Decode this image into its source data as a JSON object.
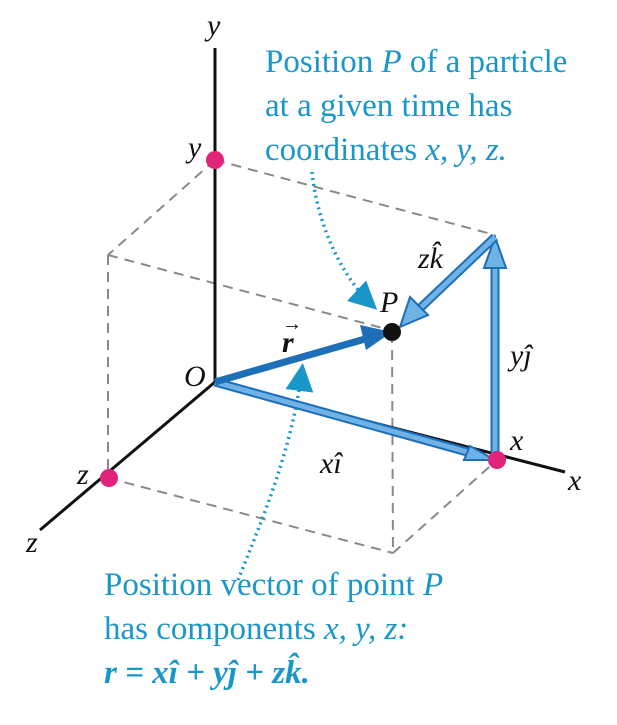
{
  "axes": {
    "x_label": "x",
    "y_label": "y",
    "z_label": "z",
    "origin_label": "O"
  },
  "coordinate_labels": {
    "x": "x",
    "y": "y",
    "z": "z"
  },
  "point_label": "P",
  "vectors": {
    "r": "r",
    "x_component": "xî",
    "y_component": "yĵ",
    "z_component": "zk̂"
  },
  "top_caption": {
    "line1_prefix": "Position ",
    "line1_var": "P",
    "line1_suffix": " of a particle",
    "line2": "at a given time has",
    "line3_prefix": "coordinates ",
    "line3_vars": "x, y, z."
  },
  "bottom_caption": {
    "line1_prefix": "Position vector of point ",
    "line1_var": "P",
    "line2_prefix": "has components ",
    "line2_vars": "x, y, z:",
    "equation": "r = xî + yĵ + zk̂."
  },
  "colors": {
    "caption": "#1a97c9",
    "vector_fill": "#6fb2e6",
    "vector_stroke": "#1d6fb8",
    "marker": "#e0247a",
    "point": "#111111",
    "dashed": "#8a8a8a",
    "axis": "#111111"
  }
}
